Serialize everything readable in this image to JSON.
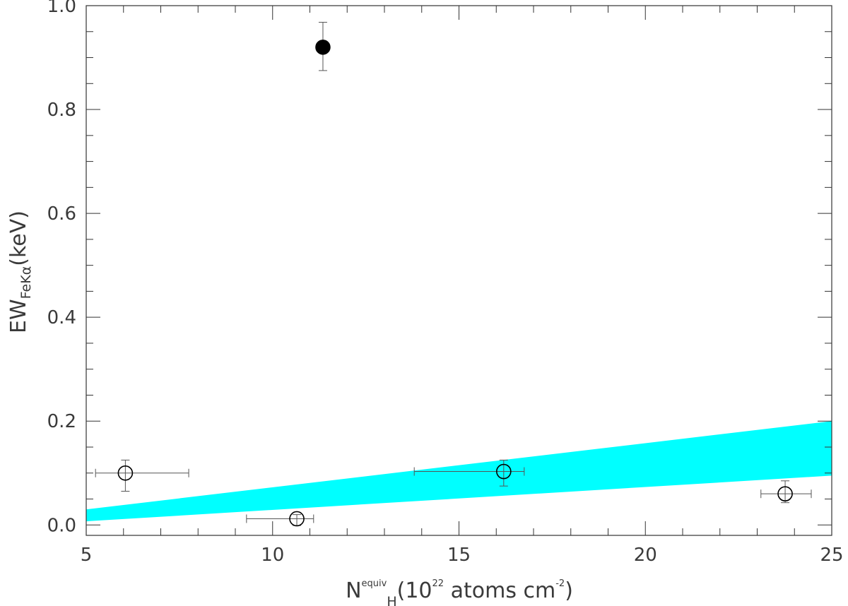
{
  "chart_data": {
    "type": "scatter",
    "xlim": [
      5,
      25
    ],
    "ylim": [
      -0.02,
      1.0
    ],
    "x_ticks_major": [
      5,
      10,
      15,
      20,
      25
    ],
    "x_tick_labels": [
      "5",
      "10",
      "15",
      "20",
      "25"
    ],
    "y_ticks_major": [
      0.0,
      0.2,
      0.4,
      0.6,
      0.8,
      1.0
    ],
    "y_tick_labels": [
      "0.0",
      "0.2",
      "0.4",
      "0.6",
      "0.8",
      "1.0"
    ],
    "grid": false,
    "xlabel": {
      "main": "N",
      "superscript": "equiv",
      "subscript": "H",
      "paren_open": "(10",
      "exponent": "22",
      "units": " atoms cm",
      "units_exponent": "-2",
      "paren_close": ")"
    },
    "ylabel": {
      "main": "EW",
      "subscript": "FeKα",
      "units": "(keV)"
    },
    "band": {
      "color": "#00ffff",
      "lower": [
        [
          5,
          0.007
        ],
        [
          25,
          0.095
        ]
      ],
      "upper": [
        [
          5,
          0.03
        ],
        [
          25,
          0.2
        ]
      ]
    },
    "points": [
      {
        "x": 6.05,
        "y": 0.1,
        "xerr": [
          0.8,
          1.7
        ],
        "yerr": [
          0.035,
          0.025
        ],
        "filled": false
      },
      {
        "x": 10.65,
        "y": 0.012,
        "xerr": [
          1.35,
          0.45
        ],
        "yerr": [
          0.013,
          0.008
        ],
        "filled": false
      },
      {
        "x": 11.35,
        "y": 0.92,
        "xerr": [
          0,
          0
        ],
        "yerr": [
          0.045,
          0.048
        ],
        "filled": true
      },
      {
        "x": 16.2,
        "y": 0.103,
        "xerr": [
          2.4,
          0.55
        ],
        "yerr": [
          0.028,
          0.022
        ],
        "filled": false
      },
      {
        "x": 23.75,
        "y": 0.06,
        "xerr": [
          0.65,
          0.7
        ],
        "yerr": [
          0.017,
          0.025
        ],
        "filled": false
      }
    ],
    "colors": {
      "axis": "#333333",
      "marker": "#000000",
      "errorbar": "#555555"
    }
  }
}
